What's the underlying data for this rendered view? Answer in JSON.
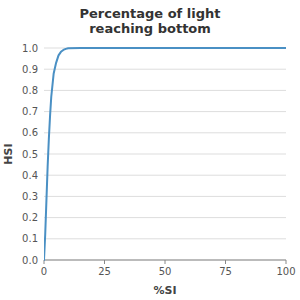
{
  "chart_data": {
    "type": "line",
    "title": "Percentage of light\nreaching bottom",
    "x_label": "%SI",
    "y_label": "HSI",
    "x": [
      0,
      0.5,
      1,
      1.5,
      2,
      2.5,
      3,
      4,
      5,
      6,
      7,
      8,
      9,
      10,
      15,
      20,
      30,
      50,
      75,
      100
    ],
    "values": [
      0.0,
      0.12,
      0.28,
      0.44,
      0.57,
      0.68,
      0.77,
      0.88,
      0.93,
      0.965,
      0.982,
      0.991,
      0.996,
      0.999,
      1.0,
      1.0,
      1.0,
      1.0,
      1.0,
      1.0
    ],
    "color": "#4a90c4",
    "xlim": [
      0,
      100
    ],
    "ylim": [
      0.0,
      1.0
    ],
    "xticks": [
      0,
      25,
      50,
      75,
      100
    ],
    "yticks": [
      {
        "value": 0,
        "label": "0.0"
      },
      0.1,
      0.2,
      0.3,
      0.4,
      0.5,
      0.6,
      0.7,
      0.8,
      0.9,
      {
        "value": 1,
        "label": "1.0"
      }
    ],
    "grid": true
  }
}
